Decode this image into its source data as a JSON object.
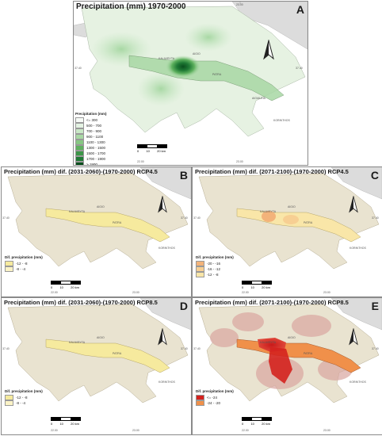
{
  "panels": [
    {
      "letter": "A",
      "title": "Precipitation (mm) 1970-2000",
      "legend_title": "Precipitation (mm)",
      "legend": [
        {
          "label": "<= 300",
          "color": "#f7fbf7"
        },
        {
          "label": "500 - 700",
          "color": "#e4f3e3"
        },
        {
          "label": "700 - 900",
          "color": "#c9e8c6"
        },
        {
          "label": "900 - 1100",
          "color": "#a8d8a4"
        },
        {
          "label": "1100 - 1300",
          "color": "#86c782"
        },
        {
          "label": "1300 - 1500",
          "color": "#5fb15f"
        },
        {
          "label": "1500 - 1700",
          "color": "#3c9648"
        },
        {
          "label": "1700 - 1900",
          "color": "#1f7a35"
        },
        {
          "label": "> 1900",
          "color": "#0a4f1e"
        }
      ],
      "scale_ticks": [
        "0",
        "10",
        "20 km"
      ],
      "coords_top": [
        "22.00",
        "23.00"
      ],
      "coords_bottom": [
        "22.00",
        "23.00"
      ],
      "coords_side": [
        "37.40",
        "37.40"
      ],
      "places": [
        "KALAVRYTA",
        "AIGIO",
        "KORINTHOS",
        "PATRA",
        "AIGIALEIA"
      ]
    },
    {
      "letter": "B",
      "title": "Precipitation (mm) dif. (2031-2060)-(1970-2000) RCP4.5",
      "legend_title": "Dif. precipitation (mm)",
      "legend": [
        {
          "label": "-12 - -8",
          "color": "#f6ea9e"
        },
        {
          "label": "-8 - -4",
          "color": "#fbf3c6"
        }
      ],
      "scale_ticks": [
        "0",
        "10",
        "20 km"
      ],
      "coords_bottom": [
        "22.00",
        "23.00"
      ],
      "coords_side": [
        "37.40",
        "37.40"
      ],
      "places": [
        "KALAVRYTA",
        "AIGIO",
        "KORINTHOS",
        "PATRA"
      ]
    },
    {
      "letter": "C",
      "title": "Precipitation (mm) dif. (2071-2100)-(1970-2000) RCP4.5",
      "legend_title": "Dif. precipitation (mm)",
      "legend": [
        {
          "label": "-20 - -16",
          "color": "#f3b37a"
        },
        {
          "label": "-16 - -12",
          "color": "#f7cf93"
        },
        {
          "label": "-12 - -8",
          "color": "#f9e6a8"
        }
      ],
      "scale_ticks": [
        "0",
        "10",
        "20 km"
      ],
      "coords_bottom": [
        "22.00",
        "23.00"
      ],
      "coords_side": [
        "37.40",
        "37.40"
      ],
      "places": [
        "KALAVRYTA",
        "AIGIO",
        "KORINTHOS",
        "PATRA"
      ]
    },
    {
      "letter": "D",
      "title": "Precipitation (mm) dif. (2031-2060)-(1970-2000) RCP8.5",
      "legend_title": "Dif. precipitation (mm)",
      "legend": [
        {
          "label": "-12 - -8",
          "color": "#f6ea9e"
        },
        {
          "label": "-8 - -4",
          "color": "#fbf3c6"
        }
      ],
      "scale_ticks": [
        "0",
        "10",
        "20 km"
      ],
      "coords_bottom": [
        "22.00",
        "23.00"
      ],
      "coords_side": [
        "37.40",
        "37.40"
      ],
      "places": [
        "KALAVRYTA",
        "AIGIO",
        "KORINTHOS",
        "PATRA"
      ]
    },
    {
      "letter": "E",
      "title": "Precipitation (mm) dif. (2071-2100)-(1970-2000) RCP8.5",
      "legend_title": "Dif. precipitation (mm)",
      "legend": [
        {
          "label": "<= -24",
          "color": "#d4221e"
        },
        {
          "label": "-24 - -20",
          "color": "#f0904a"
        }
      ],
      "scale_ticks": [
        "0",
        "10",
        "20 km"
      ],
      "coords_bottom": [
        "22.00",
        "23.00"
      ],
      "coords_side": [
        "37.40",
        "37.40"
      ],
      "places": [
        "KALAVRYTA",
        "AIGIO",
        "KORINTHOS",
        "PATRA"
      ]
    }
  ]
}
